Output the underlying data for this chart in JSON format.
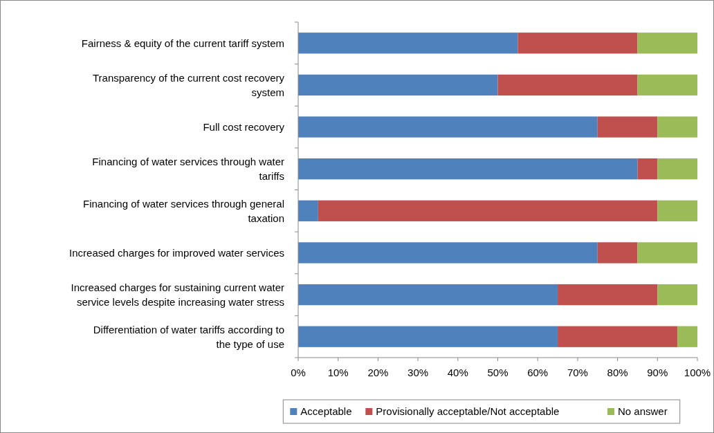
{
  "chart_data": {
    "type": "bar",
    "orientation": "horizontal",
    "stacked": true,
    "categories": [
      "Fairness & equity of the current tariff system",
      "Transparency of the current cost recovery system",
      "Full cost recovery",
      "Financing of water services through water tariffs",
      "Financing of water services through general taxation",
      "Increased charges for improved water services",
      "Increased charges for sustaining current water service levels despite increasing water stress",
      "Differentiation of water tariffs according to the type of use"
    ],
    "series": [
      {
        "name": "Acceptable",
        "color": "#4f81bd",
        "values": [
          55,
          50,
          75,
          85,
          5,
          75,
          65,
          65
        ]
      },
      {
        "name": "Provisionally acceptable/Not acceptable",
        "color": "#c0504d",
        "values": [
          30,
          35,
          15,
          5,
          85,
          10,
          25,
          30
        ]
      },
      {
        "name": "No answer",
        "color": "#9bbb59",
        "values": [
          15,
          15,
          10,
          10,
          10,
          15,
          10,
          5
        ]
      }
    ],
    "xlim": [
      0,
      100
    ],
    "xticks": [
      {
        "value": 0,
        "label": "0%"
      },
      {
        "value": 10,
        "label": "10%"
      },
      {
        "value": 20,
        "label": "20%"
      },
      {
        "value": 30,
        "label": "30%"
      },
      {
        "value": 40,
        "label": "40%"
      },
      {
        "value": 50,
        "label": "50%"
      },
      {
        "value": 60,
        "label": "60%"
      },
      {
        "value": 70,
        "label": "70%"
      },
      {
        "value": 80,
        "label": "80%"
      },
      {
        "value": 90,
        "label": "90%"
      },
      {
        "value": 100,
        "label": "100%"
      }
    ],
    "grid": false,
    "legend": "bottom"
  }
}
